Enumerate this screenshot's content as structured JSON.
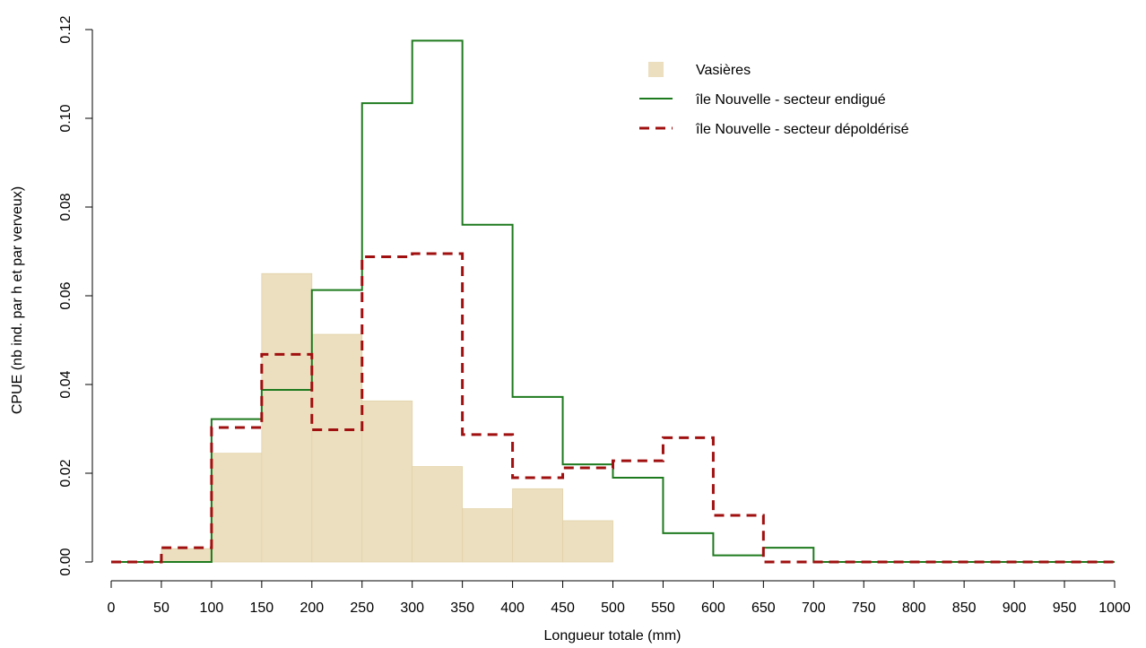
{
  "chart_data": {
    "type": "histogram",
    "xlabel": "Longueur totale (mm)",
    "ylabel": "CPUE (nb ind. par h et par verveux)",
    "xlim": [
      0,
      1000
    ],
    "ylim": [
      0,
      0.12
    ],
    "x_ticks": [
      "0",
      "50",
      "100",
      "150",
      "200",
      "250",
      "300",
      "350",
      "400",
      "450",
      "500",
      "550",
      "600",
      "650",
      "700",
      "750",
      "800",
      "850",
      "900",
      "950",
      "1000"
    ],
    "y_ticks": [
      "0.00",
      "0.02",
      "0.04",
      "0.06",
      "0.08",
      "0.10",
      "0.12"
    ],
    "bin_edges": [
      0,
      50,
      100,
      150,
      200,
      250,
      300,
      350,
      400,
      450,
      500,
      550,
      600,
      650,
      700,
      750,
      800,
      850,
      900,
      950,
      1000
    ],
    "legend_position": "top-right",
    "series": [
      {
        "name": "Vasières",
        "style": "bar",
        "color": "#ecdfbf",
        "values": [
          0.0,
          0.003,
          0.0245,
          0.065,
          0.0513,
          0.0363,
          0.0215,
          0.012,
          0.0165,
          0.0093,
          0,
          0,
          0,
          0,
          0,
          0,
          0,
          0,
          0,
          0
        ]
      },
      {
        "name": "île Nouvelle - secteur endigué",
        "style": "step-solid",
        "color": "#1e7a1e",
        "values": [
          0.0,
          0.0,
          0.0322,
          0.0388,
          0.0613,
          0.1034,
          0.1175,
          0.076,
          0.0372,
          0.022,
          0.019,
          0.0065,
          0.0015,
          0.0032,
          0.0,
          0.0,
          0.0,
          0.0,
          0.0,
          0.0
        ]
      },
      {
        "name": "île Nouvelle - secteur dépoldérisé",
        "style": "step-dashed",
        "color": "#a01010",
        "values": [
          0.0,
          0.0032,
          0.0303,
          0.0468,
          0.0298,
          0.0688,
          0.0695,
          0.0287,
          0.019,
          0.0212,
          0.0228,
          0.028,
          0.0105,
          0.0,
          0.0,
          0.0,
          0.0,
          0.0,
          0.0,
          0.0
        ]
      }
    ]
  }
}
